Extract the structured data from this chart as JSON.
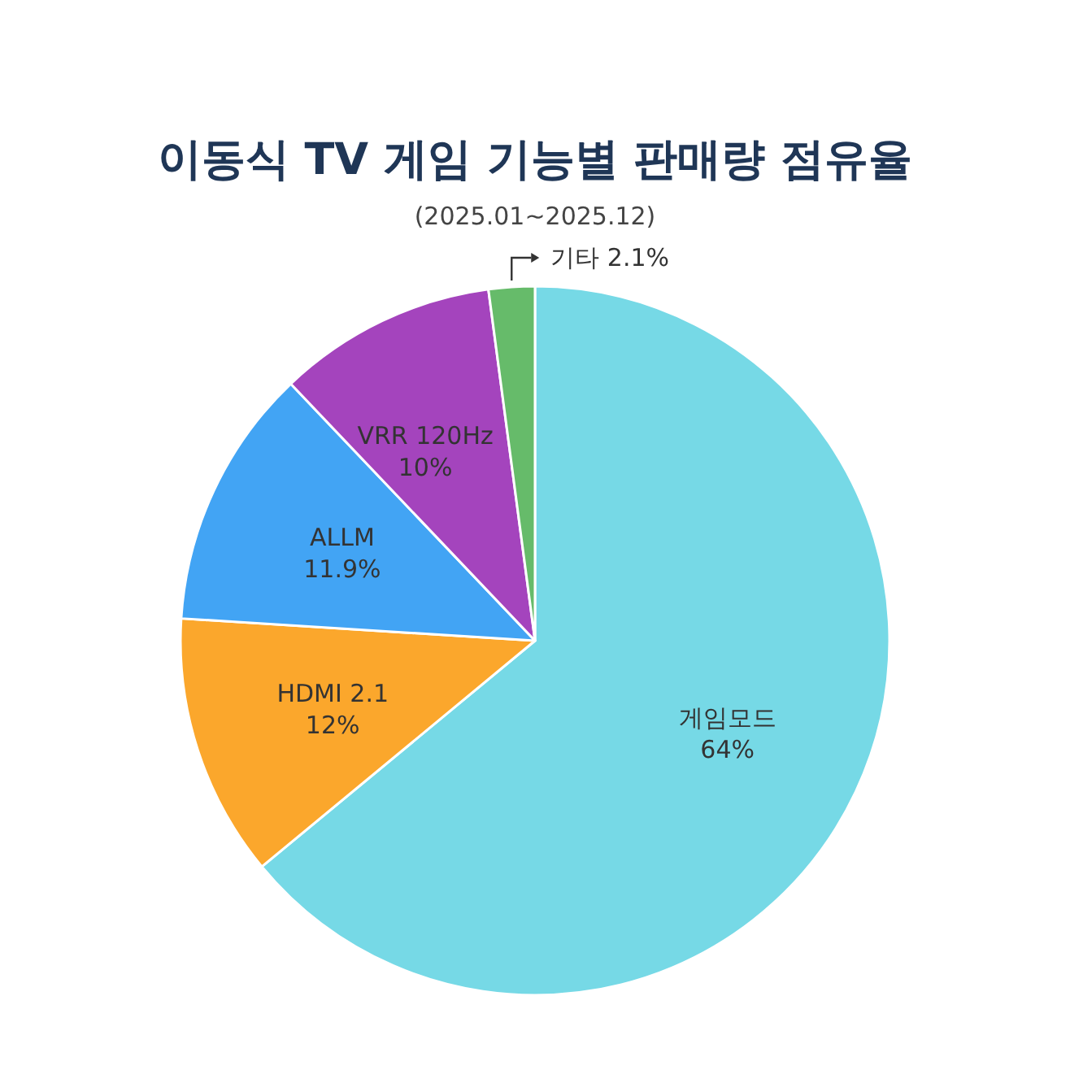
{
  "chart_data": {
    "type": "pie",
    "title": "이동식 TV 게임 기능별 판매량 점유율",
    "subtitle": "(2025.01~2025.12)",
    "categories": [
      "게임모드",
      "HDMI 2.1",
      "ALLM",
      "VRR 120Hz",
      "기타"
    ],
    "values": [
      64,
      12,
      11.9,
      10,
      2.1
    ],
    "value_labels": [
      "64%",
      "12%",
      "11.9%",
      "10%",
      "2.1%"
    ],
    "colors": [
      "#76d9e6",
      "#fba72c",
      "#42a4f4",
      "#a444bd",
      "#66bb6a"
    ]
  }
}
